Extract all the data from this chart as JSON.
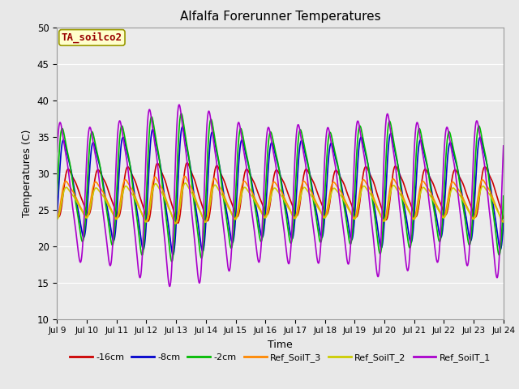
{
  "title": "Alfalfa Forerunner Temperatures",
  "xlabel": "Time",
  "ylabel": "Temperatures (C)",
  "ylim": [
    10,
    50
  ],
  "annotation": "TA_soilco2",
  "series": {
    "-16cm": {
      "color": "#cc0000",
      "lw": 1.2
    },
    "-8cm": {
      "color": "#0000cc",
      "lw": 1.2
    },
    "-2cm": {
      "color": "#00bb00",
      "lw": 1.2
    },
    "Ref_SoilT_3": {
      "color": "#ff8800",
      "lw": 1.2
    },
    "Ref_SoilT_2": {
      "color": "#cccc00",
      "lw": 1.2
    },
    "Ref_SoilT_1": {
      "color": "#aa00cc",
      "lw": 1.2
    }
  },
  "xtick_labels": [
    "Jul 9",
    "Jul 10",
    "Jul 11",
    "Jul 12",
    "Jul 13",
    "Jul 14",
    "Jul 15",
    "Jul 16",
    "Jul 17",
    "Jul 18",
    "Jul 19",
    "Jul 20",
    "Jul 21",
    "Jul 22",
    "Jul 23",
    "Jul 24"
  ],
  "ytick_values": [
    10,
    15,
    20,
    25,
    30,
    35,
    40,
    45,
    50
  ],
  "background_color": "#e8e8e8",
  "plot_bg_color": "#ebebeb",
  "grid_color": "#ffffff"
}
